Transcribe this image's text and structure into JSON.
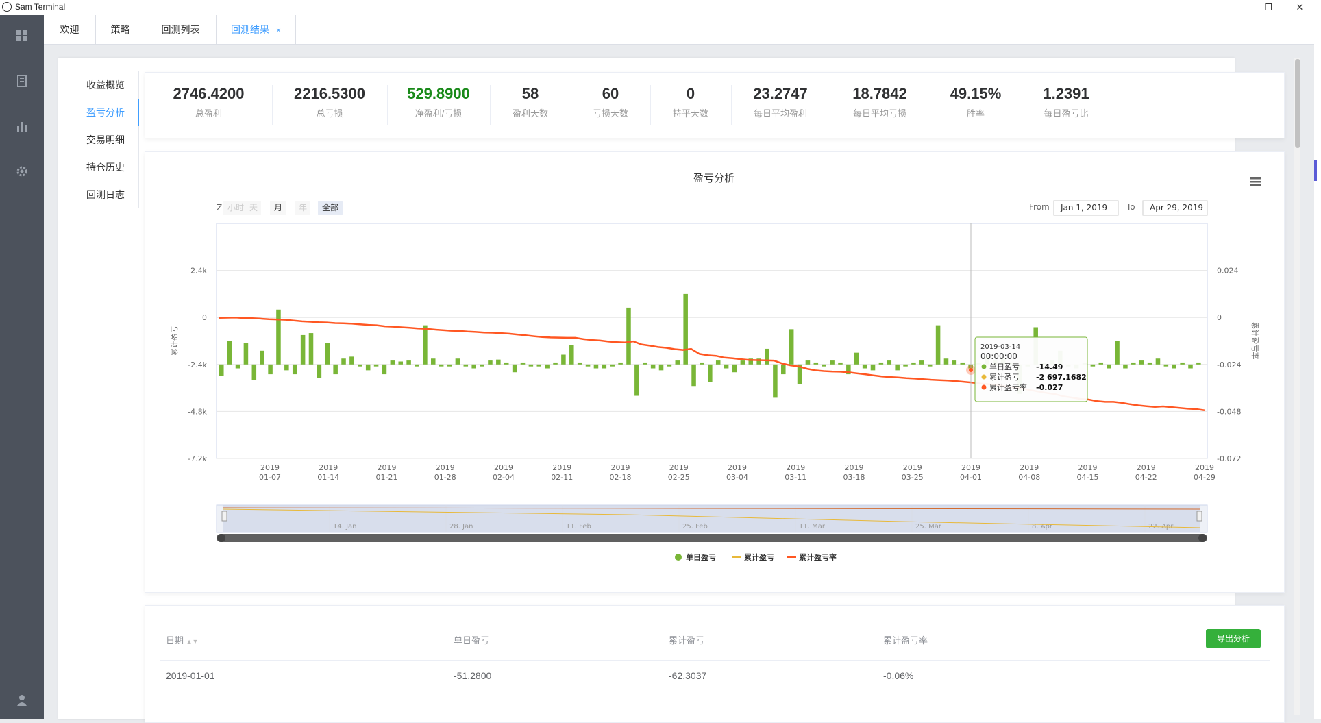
{
  "window": {
    "title": "Sam Terminal",
    "controls": [
      "—",
      "❐",
      "✕"
    ]
  },
  "tabs": [
    {
      "label": "欢迎"
    },
    {
      "label": "策略"
    },
    {
      "label": "回测列表"
    },
    {
      "label": "回测结果",
      "close": "×",
      "active": true
    }
  ],
  "left_nav": [
    {
      "label": "收益概览"
    },
    {
      "label": "盈亏分析",
      "active": true
    },
    {
      "label": "交易明细"
    },
    {
      "label": "持仓历史"
    },
    {
      "label": "回测日志"
    }
  ],
  "stats": [
    {
      "value": "2746.4200",
      "label": "总盈利"
    },
    {
      "value": "2216.5300",
      "label": "总亏损"
    },
    {
      "value": "529.8900",
      "label": "净盈利/亏损",
      "color": "#1a8a1a"
    },
    {
      "value": "58",
      "label": "盈利天数"
    },
    {
      "value": "60",
      "label": "亏损天数"
    },
    {
      "value": "0",
      "label": "持平天数"
    },
    {
      "value": "23.2747",
      "label": "每日平均盈利"
    },
    {
      "value": "18.7842",
      "label": "每日平均亏损"
    },
    {
      "value": "49.15%",
      "label": "胜率"
    },
    {
      "value": "1.2391",
      "label": "每日盈亏比"
    }
  ],
  "chart_controls": {
    "zoom_label": "Zoom",
    "zoom_buttons": [
      "小时",
      "天",
      "月",
      "年",
      "全部"
    ],
    "zoom_selected": "全部",
    "from_label": "From",
    "from_value": "Jan 1, 2019",
    "to_label": "To",
    "to_value": "Apr 29, 2019",
    "menu_icon": "hamburger-menu-icon"
  },
  "navigator": {
    "labels": [
      "14. Jan",
      "28. Jan",
      "11. Feb",
      "25. Feb",
      "11. Mar",
      "25. Mar",
      "8. Apr",
      "22. Apr"
    ]
  },
  "tooltip": {
    "date": "2019-03-14",
    "time": "00:00:00",
    "rows": [
      {
        "name": "单日盈亏",
        "value": "-14.49",
        "color": "#79b637"
      },
      {
        "name": "累计盈亏",
        "value": "-2 697.1682",
        "color": "#e8b93a"
      },
      {
        "name": "累计盈亏率",
        "value": "-0.027",
        "color": "#ff5722"
      }
    ]
  },
  "chart_data": {
    "type": "bar+line",
    "title": "盈亏分析",
    "ylabel_left": "累计盈亏",
    "ylabel_right": "累计盈亏率",
    "y_left_ticks": [
      "2.4k",
      "0",
      "-2.4k",
      "-4.8k",
      "-7.2k"
    ],
    "y_left_range": [
      -7200,
      4800
    ],
    "y_right_ticks": [
      "0.024",
      "0",
      "-0.024",
      "-0.048",
      "-0.072"
    ],
    "y_right_range": [
      -0.072,
      0.048
    ],
    "x_ticks": [
      [
        "2019",
        "01-07"
      ],
      [
        "2019",
        "01-14"
      ],
      [
        "2019",
        "01-21"
      ],
      [
        "2019",
        "01-28"
      ],
      [
        "2019",
        "02-04"
      ],
      [
        "2019",
        "02-11"
      ],
      [
        "2019",
        "02-18"
      ],
      [
        "2019",
        "02-25"
      ],
      [
        "2019",
        "03-04"
      ],
      [
        "2019",
        "03-11"
      ],
      [
        "2019",
        "03-18"
      ],
      [
        "2019",
        "03-25"
      ],
      [
        "2019",
        "04-01"
      ],
      [
        "2019",
        "04-08"
      ],
      [
        "2019",
        "04-15"
      ],
      [
        "2019",
        "04-22"
      ],
      [
        "2019",
        "04-29"
      ]
    ],
    "series": [
      {
        "name": "单日盈亏",
        "color": "#79b637",
        "type": "bar",
        "values": [
          -600,
          1200,
          -200,
          1100,
          -800,
          700,
          -500,
          2800,
          -300,
          -500,
          1500,
          1600,
          -700,
          1100,
          -500,
          300,
          400,
          -100,
          -300,
          -100,
          -500,
          200,
          150,
          200,
          -100,
          2000,
          300,
          -100,
          -100,
          300,
          -100,
          -200,
          -100,
          200,
          250,
          100,
          -400,
          100,
          -100,
          -100,
          -200,
          100,
          500,
          1000,
          100,
          -100,
          -200,
          -200,
          -100,
          100,
          2900,
          -1600,
          100,
          -200,
          -300,
          -100,
          200,
          3600,
          -1100,
          100,
          -900,
          200,
          -200,
          -400,
          200,
          300,
          300,
          800,
          -1700,
          -500,
          1800,
          -1000,
          200,
          100,
          -100,
          200,
          100,
          -500,
          600,
          -200,
          -300,
          100,
          200,
          -300,
          -100,
          100,
          200,
          -100,
          2000,
          300,
          200,
          100,
          -200,
          100,
          400,
          200,
          300,
          100,
          -1500,
          -100,
          1900,
          100,
          200,
          700,
          -100,
          -200,
          100,
          -100,
          100,
          -200,
          1200,
          -200,
          100,
          200,
          100,
          300,
          -100,
          -200,
          100,
          -200,
          100
        ]
      },
      {
        "name": "累计盈亏",
        "color": "#e8b93a",
        "type": "line"
      },
      {
        "name": "累计盈亏率",
        "color": "#ff5722",
        "type": "line",
        "values": [
          -0.0002,
          -0.0001,
          0.0,
          -0.0003,
          -0.0004,
          -0.0006,
          -0.0009,
          -0.001,
          -0.0012,
          -0.0016,
          -0.002,
          -0.0022,
          -0.0025,
          -0.0026,
          -0.0029,
          -0.003,
          -0.0032,
          -0.0035,
          -0.0038,
          -0.004,
          -0.0045,
          -0.0047,
          -0.005,
          -0.0053,
          -0.0056,
          -0.0058,
          -0.0062,
          -0.0065,
          -0.0068,
          -0.0069,
          -0.0072,
          -0.0074,
          -0.0077,
          -0.0078,
          -0.008,
          -0.0083,
          -0.0087,
          -0.0091,
          -0.0096,
          -0.01,
          -0.0102,
          -0.0103,
          -0.0104,
          -0.0104,
          -0.0111,
          -0.0115,
          -0.0118,
          -0.0123,
          -0.0126,
          -0.0128,
          -0.0122,
          -0.0138,
          -0.0144,
          -0.0151,
          -0.0155,
          -0.0162,
          -0.0166,
          -0.0161,
          -0.0186,
          -0.0193,
          -0.0196,
          -0.0205,
          -0.0208,
          -0.0213,
          -0.0217,
          -0.0218,
          -0.0219,
          -0.022,
          -0.0235,
          -0.0245,
          -0.025,
          -0.0262,
          -0.027,
          -0.0274,
          -0.0276,
          -0.0277,
          -0.028,
          -0.0285,
          -0.029,
          -0.0296,
          -0.0301,
          -0.0304,
          -0.0306,
          -0.031,
          -0.0312,
          -0.0315,
          -0.0318,
          -0.032,
          -0.0322,
          -0.0325,
          -0.0329,
          -0.0333,
          -0.0338,
          -0.0341,
          -0.0345,
          -0.0352,
          -0.0358,
          -0.0363,
          -0.0371,
          -0.0379,
          -0.0386,
          -0.0392,
          -0.0403,
          -0.0409,
          -0.0416,
          -0.0419,
          -0.0427,
          -0.0431,
          -0.0431,
          -0.0436,
          -0.0443,
          -0.0449,
          -0.0453,
          -0.0457,
          -0.0454,
          -0.0458,
          -0.0462,
          -0.0466,
          -0.0468,
          -0.0474
        ]
      }
    ],
    "legend": [
      "单日盈亏",
      "累计盈亏",
      "累计盈亏率"
    ],
    "legend_position": "bottom-center",
    "grid": true
  },
  "table": {
    "headers": [
      "日期",
      "单日盈亏",
      "累计盈亏",
      "累计盈亏率"
    ],
    "sort_icon": "sort-caret-icon",
    "export_label": "导出分析",
    "rows": [
      [
        "2019-01-01",
        "-51.2800",
        "-62.3037",
        "-0.06%"
      ]
    ]
  }
}
